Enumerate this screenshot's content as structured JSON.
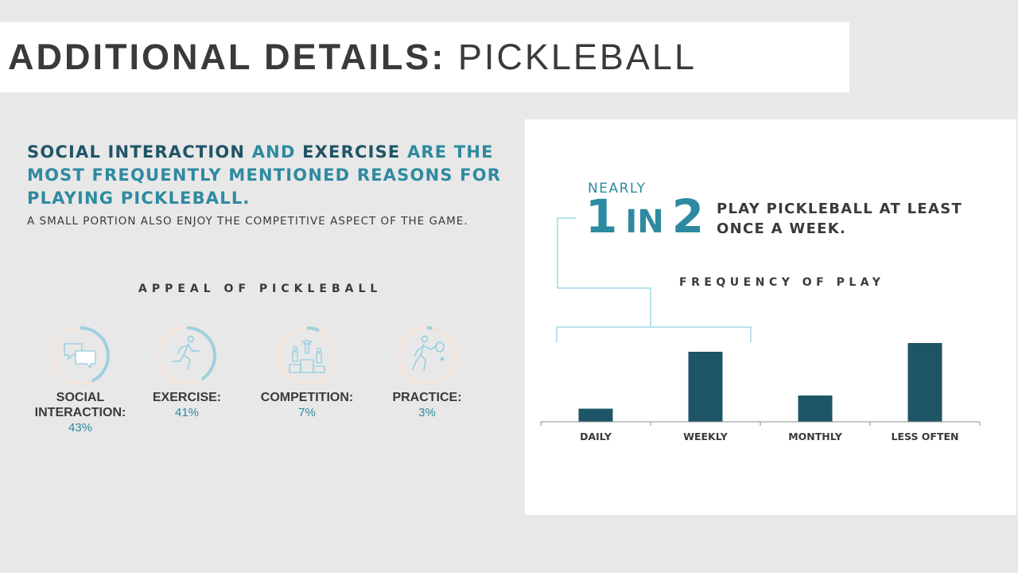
{
  "header": {
    "title_strong": "ADDITIONAL DETAILS:",
    "title_light": "PICKLEBALL"
  },
  "headline": {
    "part1": "SOCIAL INTERACTION",
    "part2": " AND ",
    "part3": "EXERCISE",
    "part4": " ARE THE MOST FREQUENTLY MENTIONED REASONS FOR PLAYING PICKLEBALL.",
    "subhead": "A SMALL PORTION ALSO ENJOY THE COMPETITIVE ASPECT OF THE GAME."
  },
  "appeal": {
    "title": "APPEAL OF PICKLEBALL",
    "items": [
      {
        "label": "SOCIAL INTERACTION:",
        "value": "43%",
        "pct": 43,
        "icon": "chat-bubbles-icon"
      },
      {
        "label": "EXERCISE:",
        "value": "41%",
        "pct": 41,
        "icon": "runner-icon"
      },
      {
        "label": "COMPETITION:",
        "value": "7%",
        "pct": 7,
        "icon": "podium-icon"
      },
      {
        "label": "PRACTICE:",
        "value": "3%",
        "pct": 3,
        "icon": "tennis-player-icon"
      }
    ],
    "colors": {
      "ring_track": "#f2e3da",
      "ring_fill": "#9fd0e0",
      "icon": "#8ecde0"
    }
  },
  "stat": {
    "nearly": "NEARLY",
    "num1": "1",
    "in": "IN",
    "num2": "2",
    "text": "PLAY PICKLEBALL AT LEAST ONCE A WEEK."
  },
  "chart_data": {
    "type": "bar",
    "title": "FREQUENCY OF PLAY",
    "categories": [
      "DAILY",
      "WEEKLY",
      "MONTHLY",
      "LESS OFTEN"
    ],
    "values": [
      6,
      32,
      12,
      36
    ],
    "ylim": [
      0,
      40
    ],
    "grid": false,
    "color": "#1e5566"
  },
  "colors": {
    "accent": "#2e8aa0",
    "dark_teal": "#1f5466",
    "text": "#3a3a3a"
  }
}
